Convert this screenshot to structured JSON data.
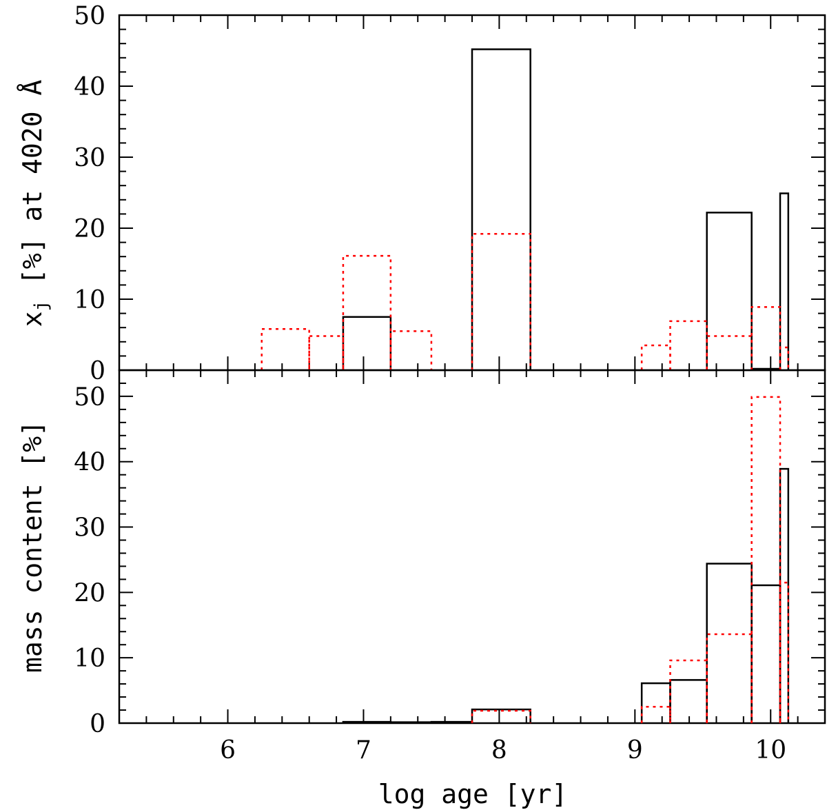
{
  "figure": {
    "xlabel": "log age [yr]",
    "xlim": [
      5.2,
      10.4
    ],
    "xticks": [
      6,
      7,
      8,
      9,
      10
    ],
    "xtick_labels": [
      "6",
      "7",
      "8",
      "9",
      "10"
    ],
    "minor_step": 0.2,
    "colors": {
      "solid": "#000000",
      "dotted": "#ff0000",
      "axes": "#000000"
    }
  },
  "chart_data": [
    {
      "type": "step",
      "panel": "top",
      "ylabel": "x",
      "ylabel_subscript": "j",
      "ylabel_rest": " [%] at 4020 Å",
      "ylim": [
        0,
        50
      ],
      "yticks": [
        0,
        10,
        20,
        30,
        40,
        50
      ],
      "ytick_labels": [
        "0",
        "10",
        "20",
        "30",
        "40",
        "50"
      ],
      "series": [
        {
          "name": "solid",
          "style": "solid",
          "steps": [
            {
              "x0": 6.85,
              "x1": 7.2,
              "y": 7.5
            },
            {
              "x0": 7.8,
              "x1": 8.23,
              "y": 45.2
            },
            {
              "x0": 9.53,
              "x1": 9.86,
              "y": 22.2
            },
            {
              "x0": 9.86,
              "x1": 10.07,
              "y": 0.2
            },
            {
              "x0": 10.07,
              "x1": 10.13,
              "y": 24.9
            }
          ]
        },
        {
          "name": "dotted",
          "style": "dotted",
          "steps": [
            {
              "x0": 6.25,
              "x1": 6.6,
              "y": 5.8
            },
            {
              "x0": 6.6,
              "x1": 6.85,
              "y": 4.8
            },
            {
              "x0": 6.85,
              "x1": 7.2,
              "y": 16.1
            },
            {
              "x0": 7.2,
              "x1": 7.5,
              "y": 5.5
            },
            {
              "x0": 7.8,
              "x1": 8.23,
              "y": 19.2
            },
            {
              "x0": 9.05,
              "x1": 9.26,
              "y": 3.5
            },
            {
              "x0": 9.26,
              "x1": 9.53,
              "y": 6.9
            },
            {
              "x0": 9.53,
              "x1": 9.86,
              "y": 4.8
            },
            {
              "x0": 9.86,
              "x1": 10.07,
              "y": 8.9
            },
            {
              "x0": 10.07,
              "x1": 10.13,
              "y": 3.2
            }
          ]
        }
      ]
    },
    {
      "type": "step",
      "panel": "bottom",
      "ylabel": "mass content [%]",
      "ylim": [
        0,
        54
      ],
      "yticks": [
        0,
        10,
        20,
        30,
        40,
        50
      ],
      "ytick_labels": [
        "0",
        "10",
        "20",
        "30",
        "40",
        "50"
      ],
      "series": [
        {
          "name": "solid",
          "style": "solid",
          "steps": [
            {
              "x0": 6.85,
              "x1": 7.2,
              "y": 0.2
            },
            {
              "x0": 7.2,
              "x1": 7.5,
              "y": 0.15
            },
            {
              "x0": 7.5,
              "x1": 7.8,
              "y": 0.2
            },
            {
              "x0": 7.8,
              "x1": 8.23,
              "y": 2.1
            },
            {
              "x0": 9.05,
              "x1": 9.26,
              "y": 6.1
            },
            {
              "x0": 9.26,
              "x1": 9.53,
              "y": 6.6
            },
            {
              "x0": 9.53,
              "x1": 9.86,
              "y": 24.4
            },
            {
              "x0": 9.86,
              "x1": 10.07,
              "y": 21.1
            },
            {
              "x0": 10.07,
              "x1": 10.13,
              "y": 38.9
            }
          ]
        },
        {
          "name": "dotted",
          "style": "dotted",
          "steps": [
            {
              "x0": 7.8,
              "x1": 8.23,
              "y": 1.9
            },
            {
              "x0": 9.05,
              "x1": 9.26,
              "y": 2.5
            },
            {
              "x0": 9.26,
              "x1": 9.53,
              "y": 9.6
            },
            {
              "x0": 9.53,
              "x1": 9.86,
              "y": 13.6
            },
            {
              "x0": 9.86,
              "x1": 10.07,
              "y": 49.9
            },
            {
              "x0": 10.07,
              "x1": 10.13,
              "y": 21.5
            }
          ]
        }
      ]
    }
  ]
}
